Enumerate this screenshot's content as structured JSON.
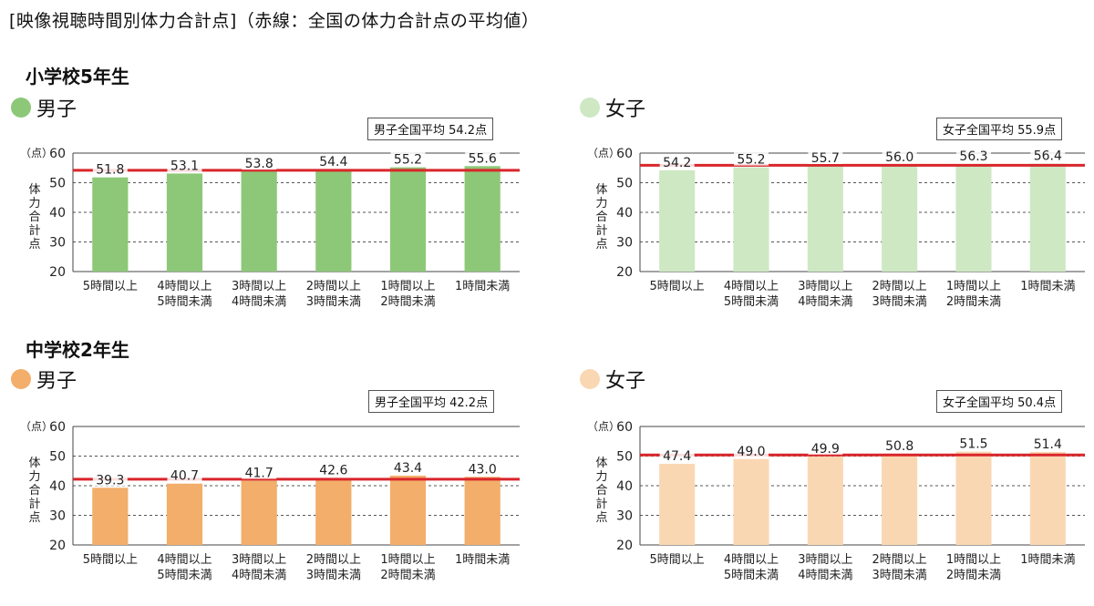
{
  "page_title": "[映像視聴時間別体力合計点]（赤線：全国の体力合計点の平均値）",
  "sections": [
    {
      "title": "小学校5年生"
    },
    {
      "title": "中学校2年生"
    }
  ],
  "colors": {
    "elem_boy": "#8DC878",
    "elem_girl": "#CDE8C3",
    "mid_boy": "#F2AE6A",
    "mid_girl": "#FAD7B3",
    "average_line": "#D9262B",
    "grid": "#555555"
  },
  "chart_data": [
    {
      "type": "bar",
      "group": "小学校5年生",
      "gender_label": "男子",
      "average_label": "男子全国平均 54.2点",
      "average": 54.2,
      "unit": "（点）",
      "ylabel": "体力合計点",
      "ylim": [
        20,
        60
      ],
      "yticks": [
        "20",
        "30",
        "40",
        "50",
        "60"
      ],
      "categories": [
        [
          "5時間以上"
        ],
        [
          "4時間以上",
          "5時間未満"
        ],
        [
          "3時間以上",
          "4時間未満"
        ],
        [
          "2時間以上",
          "3時間未満"
        ],
        [
          "1時間以上",
          "2時間未満"
        ],
        [
          "1時間未満"
        ]
      ],
      "values": [
        51.8,
        53.1,
        53.8,
        54.4,
        55.2,
        55.6
      ],
      "labels": [
        "51.8",
        "53.1",
        "53.8",
        "54.4",
        "55.2",
        "55.6"
      ],
      "color": "#8DC878",
      "grid": "dashed"
    },
    {
      "type": "bar",
      "group": "小学校5年生",
      "gender_label": "女子",
      "average_label": "女子全国平均 55.9点",
      "average": 55.9,
      "unit": "（点）",
      "ylabel": "体力合計点",
      "ylim": [
        20,
        60
      ],
      "yticks": [
        "20",
        "30",
        "40",
        "50",
        "60"
      ],
      "categories": [
        [
          "5時間以上"
        ],
        [
          "4時間以上",
          "5時間未満"
        ],
        [
          "3時間以上",
          "4時間未満"
        ],
        [
          "2時間以上",
          "3時間未満"
        ],
        [
          "1時間以上",
          "2時間未満"
        ],
        [
          "1時間未満"
        ]
      ],
      "values": [
        54.2,
        55.2,
        55.7,
        56.0,
        56.3,
        56.4
      ],
      "labels": [
        "54.2",
        "55.2",
        "55.7",
        "56.0",
        "56.3",
        "56.4"
      ],
      "color": "#CDE8C3",
      "grid": "dashed"
    },
    {
      "type": "bar",
      "group": "中学校2年生",
      "gender_label": "男子",
      "average_label": "男子全国平均 42.2点",
      "average": 42.2,
      "unit": "（点）",
      "ylabel": "体力合計点",
      "ylim": [
        20,
        60
      ],
      "yticks": [
        "20",
        "30",
        "40",
        "50",
        "60"
      ],
      "categories": [
        [
          "5時間以上"
        ],
        [
          "4時間以上",
          "5時間未満"
        ],
        [
          "3時間以上",
          "4時間未満"
        ],
        [
          "2時間以上",
          "3時間未満"
        ],
        [
          "1時間以上",
          "2時間未満"
        ],
        [
          "1時間未満"
        ]
      ],
      "values": [
        39.3,
        40.7,
        41.7,
        42.6,
        43.4,
        43.0
      ],
      "labels": [
        "39.3",
        "40.7",
        "41.7",
        "42.6",
        "43.4",
        "43.0"
      ],
      "color": "#F2AE6A",
      "grid": "dashed"
    },
    {
      "type": "bar",
      "group": "中学校2年生",
      "gender_label": "女子",
      "average_label": "女子全国平均 50.4点",
      "average": 50.4,
      "unit": "（点）",
      "ylabel": "体力合計点",
      "ylim": [
        20,
        60
      ],
      "yticks": [
        "20",
        "30",
        "40",
        "50",
        "60"
      ],
      "categories": [
        [
          "5時間以上"
        ],
        [
          "4時間以上",
          "5時間未満"
        ],
        [
          "3時間以上",
          "4時間未満"
        ],
        [
          "2時間以上",
          "3時間未満"
        ],
        [
          "1時間以上",
          "2時間未満"
        ],
        [
          "1時間未満"
        ]
      ],
      "values": [
        47.4,
        49.0,
        49.9,
        50.8,
        51.5,
        51.4
      ],
      "labels": [
        "47.4",
        "49.0",
        "49.9",
        "50.8",
        "51.5",
        "51.4"
      ],
      "color": "#FAD7B3",
      "grid": "dashed"
    }
  ]
}
